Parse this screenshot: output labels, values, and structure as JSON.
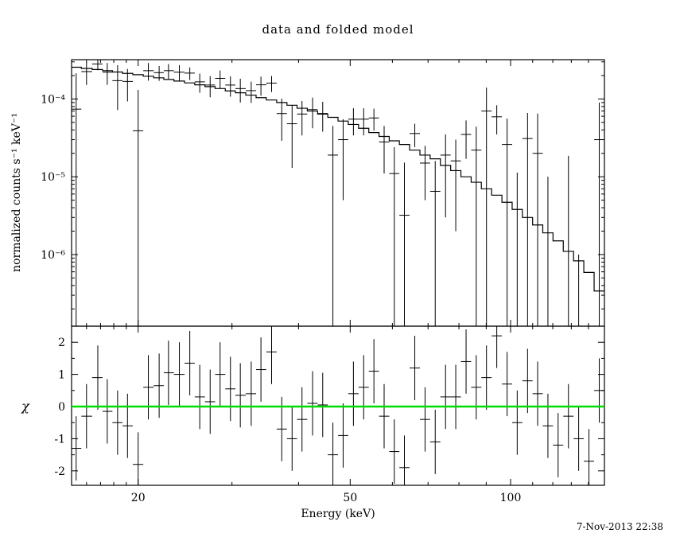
{
  "chart_data": {
    "type": "scatter",
    "title": "data and folded model",
    "xlabel": "Energy (keV)",
    "timestamp": "7-Nov-2013 22:38",
    "x_scale": "log",
    "x_range": [
      15,
      150
    ],
    "x_major_ticks": [
      20,
      50,
      100
    ],
    "grid": false,
    "legend": "none",
    "colors": {
      "data": "#000000",
      "model": "#000000",
      "zero_line": "#00dd00",
      "background": "#ffffff"
    },
    "energy_kev": [
      15.3,
      16.0,
      16.8,
      17.5,
      18.3,
      19.1,
      20.0,
      20.9,
      21.9,
      22.8,
      23.9,
      25.0,
      26.1,
      27.3,
      28.5,
      29.8,
      31.1,
      32.6,
      34.0,
      35.6,
      37.2,
      38.9,
      40.6,
      42.5,
      44.4,
      46.4,
      48.5,
      50.7,
      53.0,
      55.4,
      57.9,
      60.5,
      63.2,
      66.1,
      69.1,
      72.2,
      75.5,
      78.9,
      82.5,
      86.2,
      90.1,
      94.2,
      98.5,
      102.9,
      107.6,
      112.4,
      117.5,
      122.8,
      128.4,
      134.2,
      140.3,
      146.7
    ],
    "panels": [
      {
        "name": "spectrum",
        "ylabel": "normalized counts s⁻¹ keV⁻¹",
        "y_scale": "log",
        "y_range": [
          1.2e-07,
          0.00032
        ],
        "y_tick_values": [
          0.0001,
          1e-05,
          1e-06
        ],
        "y_tick_labels": [
          "10⁻⁴",
          "10⁻⁵",
          "10⁻⁶"
        ],
        "series": [
          {
            "name": "data",
            "style": "errorbar-cross",
            "y": [
              7.4e-05,
              0.000225,
              0.000282,
              0.000221,
              0.000172,
              0.000168,
              3.9e-05,
              0.000231,
              0.000218,
              0.000231,
              0.000221,
              0.000215,
              0.000166,
              0.000151,
              0.000184,
              0.000151,
              0.000136,
              0.000128,
              0.000152,
              0.00016,
              6.5e-05,
              4.8e-05,
              6.4e-05,
              7.3e-05,
              6.5e-05,
              1.9e-05,
              3e-05,
              5.5e-05,
              5.5e-05,
              5.7e-05,
              2.8e-05,
              1.1e-05,
              3.2e-06,
              3.6e-05,
              1.5e-05,
              6.5e-06,
              1.9e-05,
              1.6e-05,
              3.5e-05,
              2.2e-05,
              7e-05,
              5.9e-05,
              2.6e-05,
              -3.7e-06,
              3.1e-05,
              2e-05,
              -1e-05,
              -1.6e-05,
              -6.4e-06,
              -1.7e-05,
              -2e-05,
              3e-05
            ],
            "y_err": [
              0.00014,
              7.4e-05,
              4.8e-05,
              6.9e-05,
              0.0001,
              7.5e-05,
              9.2e-05,
              5.9e-05,
              4.7e-05,
              5e-05,
              5.1e-05,
              4e-05,
              4.6e-05,
              4.6e-05,
              4.8e-05,
              4.4e-05,
              4.6e-05,
              3.9e-05,
              4.2e-05,
              3.7e-05,
              3.6e-05,
              3.5e-05,
              3e-05,
              3.1e-05,
              2.7e-05,
              2.6e-05,
              2.5e-05,
              2.1e-05,
              2.1e-05,
              1.8e-05,
              1.7e-05,
              1.3e-05,
              1.2e-05,
              1.2e-05,
              1e-05,
              9.5e-06,
              1.6e-05,
              1.4e-05,
              1.8e-05,
              2.2e-05,
              7e-05,
              2.4e-05,
              3e-05,
              1.5e-05,
              3.5e-05,
              4.5e-05,
              2e-05,
              1.5e-05,
              2.5e-05,
              1.8e-05,
              1.2e-05,
              6e-05
            ]
          },
          {
            "name": "folded model",
            "style": "step-histogram",
            "y": [
              0.000256,
              0.000247,
              0.000239,
              0.000231,
              0.000222,
              0.000213,
              0.000205,
              0.000196,
              0.000187,
              0.000178,
              0.00017,
              0.000161,
              0.000152,
              0.000144,
              0.000136,
              0.000127,
              0.00012,
              0.000112,
              0.000104,
              9.7e-05,
              9e-05,
              8.3e-05,
              7.6e-05,
              7e-05,
              6.4e-05,
              5.8e-05,
              5.2e-05,
              4.7e-05,
              4.2e-05,
              3.7e-05,
              3.3e-05,
              2.9e-05,
              2.6e-05,
              2.2e-05,
              1.9e-05,
              1.7e-05,
              1.4e-05,
              1.2e-05,
              1e-05,
              8.5e-06,
              7e-06,
              5.8e-06,
              4.7e-06,
              3.8e-06,
              3e-06,
              2.4e-06,
              1.9e-06,
              1.5e-06,
              1.1e-06,
              8.3e-07,
              5.9e-07,
              3.4e-07
            ]
          }
        ]
      },
      {
        "name": "residuals",
        "ylabel": "χ",
        "y_scale": "linear",
        "y_range": [
          -2.45,
          2.5
        ],
        "y_tick_values": [
          -2,
          -1,
          0,
          1,
          2
        ],
        "y_tick_labels": [
          "-2",
          "-1",
          "0",
          "1",
          "2"
        ],
        "series": [
          {
            "name": "delchi",
            "style": "errorbar-cross",
            "y": [
              -1.3,
              -0.3,
              0.9,
              -0.15,
              -0.5,
              -0.6,
              -1.8,
              0.6,
              0.65,
              1.05,
              1.0,
              1.35,
              0.3,
              0.15,
              1.0,
              0.55,
              0.35,
              0.4,
              1.15,
              1.7,
              -0.7,
              -1.0,
              -0.4,
              0.1,
              0.05,
              -1.5,
              -0.9,
              0.4,
              0.6,
              1.1,
              -0.3,
              -1.4,
              -1.9,
              1.2,
              -0.4,
              -1.1,
              0.3,
              0.3,
              1.4,
              0.6,
              0.9,
              2.2,
              0.7,
              -0.5,
              0.8,
              0.4,
              -0.6,
              -1.2,
              -0.3,
              -1.0,
              -1.7,
              0.5
            ],
            "y_err_const": 1
          },
          {
            "name": "zero line",
            "style": "hline",
            "y_value": 0,
            "color": "#00dd00"
          }
        ]
      }
    ]
  }
}
